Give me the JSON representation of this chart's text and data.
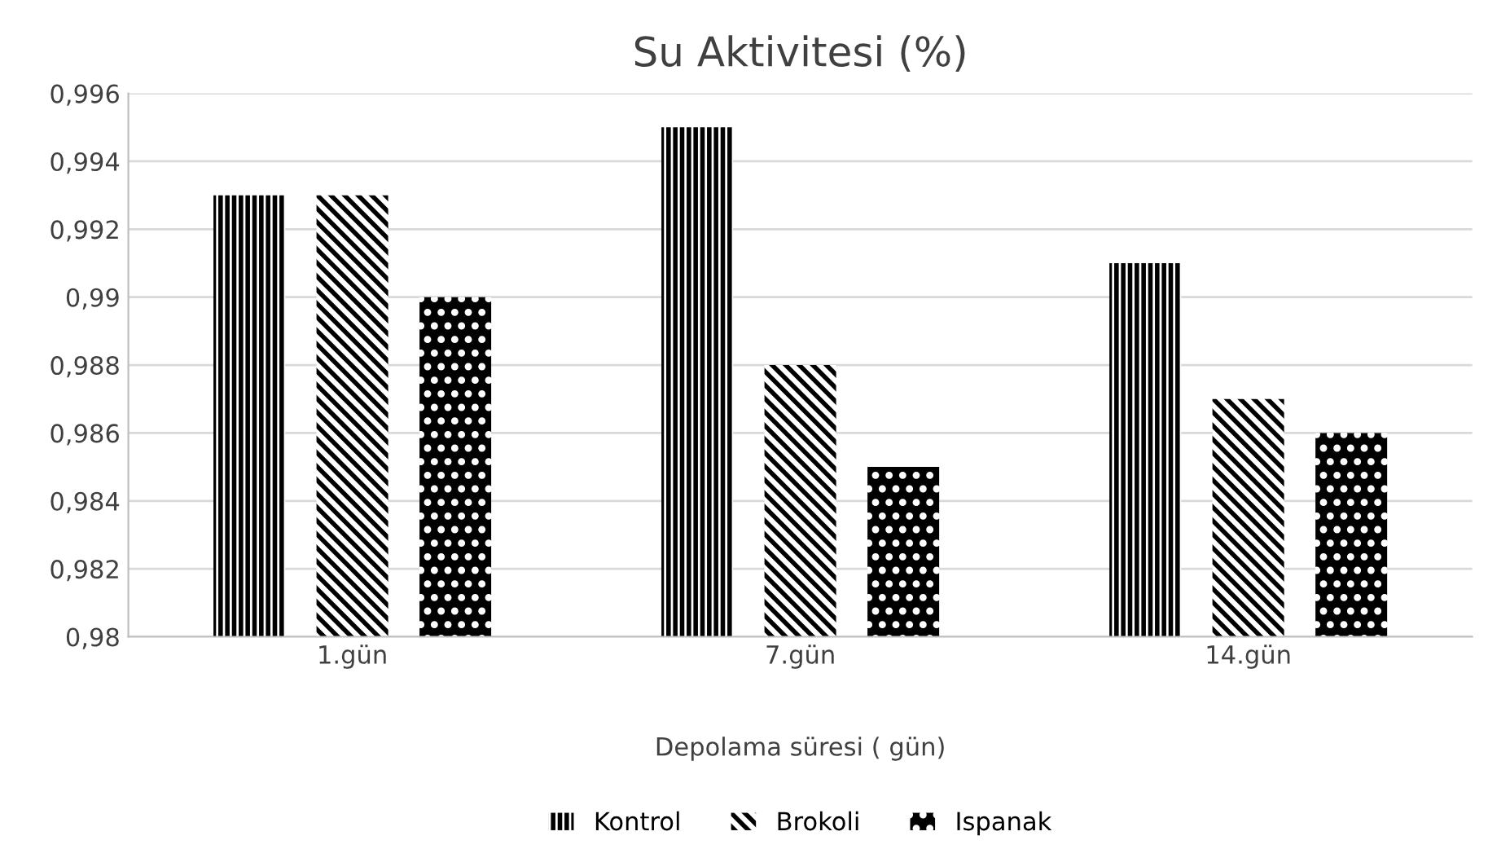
{
  "chart_data": {
    "type": "bar",
    "title": "Su Aktivitesi (%)",
    "xlabel": "Depolama süresi ( gün)",
    "categories": [
      "1.gün",
      "7.gün",
      "14.gün"
    ],
    "series": [
      {
        "name": "Kontrol",
        "color": "#000000",
        "values": [
          0.993,
          0.995,
          0.991
        ]
      },
      {
        "name": "Brokoli",
        "color": "#000000",
        "values": [
          0.993,
          0.988,
          0.987
        ]
      },
      {
        "name": "Ispanak",
        "color": "#000000",
        "values": [
          0.99,
          0.985,
          0.986
        ]
      }
    ],
    "ylim": [
      0.98,
      0.996
    ],
    "yticks": [
      {
        "value": 0.98,
        "label": "0,98"
      },
      {
        "value": 0.982,
        "label": "0,982"
      },
      {
        "value": 0.984,
        "label": "0,984"
      },
      {
        "value": 0.986,
        "label": "0,986"
      },
      {
        "value": 0.988,
        "label": "0,988"
      },
      {
        "value": 0.99,
        "label": "0,99"
      },
      {
        "value": 0.992,
        "label": "0,992"
      },
      {
        "value": 0.994,
        "label": "0,994"
      },
      {
        "value": 0.996,
        "label": "0,996"
      }
    ],
    "grid": "y",
    "legend": "bottom"
  }
}
